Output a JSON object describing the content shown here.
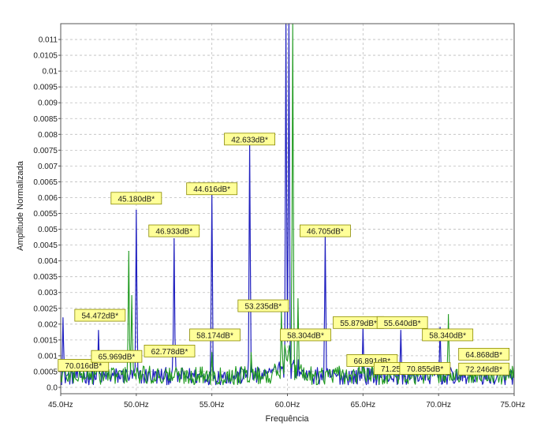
{
  "chart_data": {
    "type": "line",
    "title": "",
    "xlabel": "Frequência",
    "ylabel": "Amplitude Normalizada",
    "xlim": [
      45.0,
      75.0
    ],
    "ylim": [
      -0.0002,
      0.0115
    ],
    "x_ticks": [
      45.0,
      50.0,
      55.0,
      60.0,
      65.0,
      70.0,
      75.0
    ],
    "x_tick_labels": [
      "45.0Hz",
      "50.0Hz",
      "55.0Hz",
      "60.0Hz",
      "65.0Hz",
      "70.0Hz",
      "75.0Hz"
    ],
    "y_ticks": [
      0.0,
      0.0005,
      0.001,
      0.0015,
      0.002,
      0.0025,
      0.003,
      0.0035,
      0.004,
      0.0045,
      0.005,
      0.0055,
      0.006,
      0.0065,
      0.007,
      0.0075,
      0.008,
      0.0085,
      0.009,
      0.0095,
      0.01,
      0.0105,
      0.011
    ],
    "y_tick_labels": [
      "0.0",
      "0.0005",
      "0.001",
      "0.0015",
      "0.002",
      "0.0025",
      "0.003",
      "0.0035",
      "0.004",
      "0.0045",
      "0.005",
      "0.0055",
      "0.006",
      "0.0065",
      "0.007",
      "0.0075",
      "0.008",
      "0.0085",
      "0.009",
      "0.0095",
      "0.01",
      "0.0105",
      "0.011"
    ],
    "grid": true,
    "colors": {
      "series_blue": "#1f1fbf",
      "series_green": "#1f9a1f",
      "label_bg": "#ffff99",
      "label_border": "#8a8a00",
      "grid": "#bdbdbd"
    },
    "series": [
      {
        "color_key": "series_blue",
        "peaks": [
          {
            "x": 45.15,
            "y": 0.0022
          },
          {
            "x": 47.5,
            "y": 0.0018
          },
          {
            "x": 50.0,
            "y": 0.0056
          },
          {
            "x": 52.5,
            "y": 0.0047
          },
          {
            "x": 55.0,
            "y": 0.0061
          },
          {
            "x": 57.5,
            "y": 0.0077
          },
          {
            "x": 59.9,
            "y": 0.0115
          },
          {
            "x": 60.1,
            "y": 0.0115
          },
          {
            "x": 62.5,
            "y": 0.0048
          },
          {
            "x": 65.0,
            "y": 0.0019
          },
          {
            "x": 67.5,
            "y": 0.0018
          },
          {
            "x": 70.1,
            "y": 0.0019
          },
          {
            "x": 72.5,
            "y": 0.0006
          }
        ]
      },
      {
        "color_key": "series_green",
        "peaks": [
          {
            "x": 49.5,
            "y": 0.0043
          },
          {
            "x": 49.7,
            "y": 0.0029
          },
          {
            "x": 55.0,
            "y": 0.0011
          },
          {
            "x": 57.6,
            "y": 0.0011
          },
          {
            "x": 59.6,
            "y": 0.0025
          },
          {
            "x": 60.35,
            "y": 0.0115
          },
          {
            "x": 60.7,
            "y": 0.0028
          },
          {
            "x": 65.0,
            "y": 0.0008
          },
          {
            "x": 70.65,
            "y": 0.0023
          },
          {
            "x": 72.6,
            "y": 0.0004
          }
        ]
      }
    ],
    "annotations": [
      {
        "text": "42.633dB*",
        "x": 57.5,
        "y": 0.00785
      },
      {
        "text": "44.616dB*",
        "x": 55.0,
        "y": 0.00628
      },
      {
        "text": "45.180dB*",
        "x": 50.0,
        "y": 0.00598
      },
      {
        "text": "46.933dB*",
        "x": 52.5,
        "y": 0.00495
      },
      {
        "text": "46.705dB*",
        "x": 62.5,
        "y": 0.00495
      },
      {
        "text": "54.472dB*",
        "x": 47.6,
        "y": 0.00228
      },
      {
        "text": "53.235dB*",
        "x": 58.4,
        "y": 0.00258
      },
      {
        "text": "58.174dB*",
        "x": 55.2,
        "y": 0.00166
      },
      {
        "text": "58.304dB*",
        "x": 61.2,
        "y": 0.00166
      },
      {
        "text": "55.879dB*",
        "x": 64.7,
        "y": 0.00205
      },
      {
        "text": "55.640dB*",
        "x": 67.6,
        "y": 0.00205
      },
      {
        "text": "58.340dB*",
        "x": 70.6,
        "y": 0.00166
      },
      {
        "text": "70.016dB*",
        "x": 46.5,
        "y": 0.0007
      },
      {
        "text": "65.969dB*",
        "x": 48.7,
        "y": 0.00098
      },
      {
        "text": "62.778dB*",
        "x": 52.2,
        "y": 0.00115
      },
      {
        "text": "66.891dB*",
        "x": 65.6,
        "y": 0.00085
      },
      {
        "text": "71.251dB*",
        "x": 67.4,
        "y": 0.0006
      },
      {
        "text": "70.855dB*",
        "x": 69.1,
        "y": 0.0006
      },
      {
        "text": "72.246dB*",
        "x": 73.0,
        "y": 0.00058
      },
      {
        "text": "64.868dB*",
        "x": 73.0,
        "y": 0.00105
      }
    ]
  }
}
